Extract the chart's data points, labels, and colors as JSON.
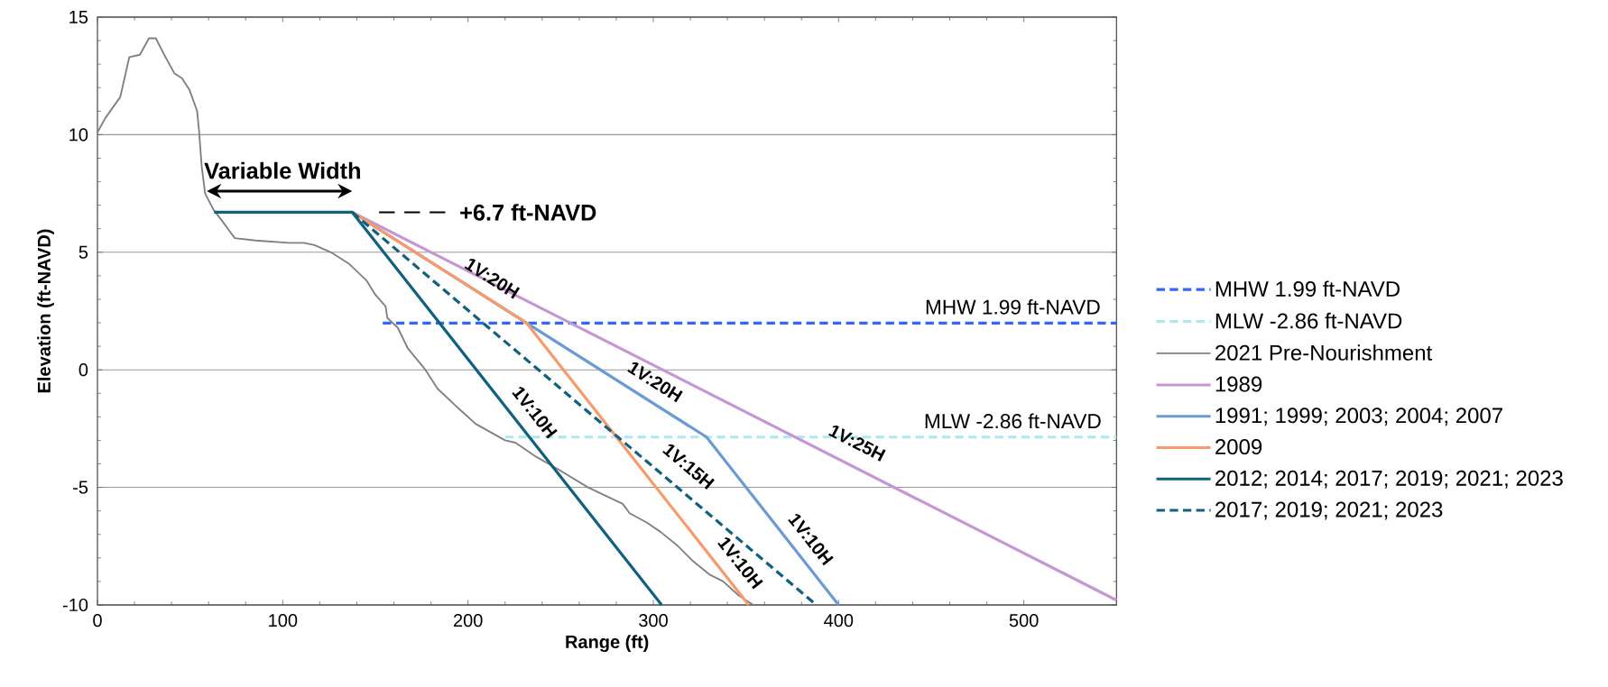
{
  "chart_data": {
    "type": "line",
    "xlabel": "Range (ft)",
    "ylabel": "Elevation (ft-NAVD)",
    "xlim": [
      0,
      550
    ],
    "ylim": [
      -10,
      15
    ],
    "xticks": [
      0,
      100,
      200,
      300,
      400,
      500
    ],
    "yticks": [
      -10,
      -5,
      0,
      5,
      10,
      15
    ],
    "grid": "y",
    "legend": "right",
    "marker": "none",
    "series": [
      {
        "name": "MHW 1.99 ft-NAVD",
        "color": "#3366ff",
        "line_style": "dashed",
        "x": [
          154,
          550
        ],
        "values": [
          1.99,
          1.99
        ]
      },
      {
        "name": "MLW -2.86 ft-NAVD",
        "color": "#aee6f8",
        "line_style": "dashed",
        "x": [
          220,
          550
        ],
        "values": [
          -2.86,
          -2.86
        ]
      },
      {
        "name": "2021 Pre-Nourishment",
        "color": "#808080",
        "line_style": "solid",
        "x": [
          0,
          4.2,
          12.3,
          17.2,
          22.9,
          27.8,
          31.5,
          36.7,
          41.6,
          45.6,
          49.7,
          53.8,
          54.9,
          56.2,
          58.1,
          62.7,
          67.6,
          74.1,
          85.4,
          103.3,
          111.4,
          117.2,
          126,
          135.9,
          145.2,
          149.9,
          155.5,
          156.5,
          162,
          167.6,
          177,
          183.5,
          195.7,
          204.1,
          220,
          225.6,
          236.8,
          248,
          264.8,
          283.5,
          287.2,
          296.6,
          304,
          313.4,
          320.9,
          330.2,
          337.7,
          346.1,
          354
        ],
        "values": [
          10.1,
          10.7,
          11.6,
          13.3,
          13.4,
          14.1,
          14.1,
          13.3,
          12.6,
          12.4,
          11.9,
          11.0,
          10.1,
          8.7,
          7.5,
          6.8,
          6.3,
          5.6,
          5.5,
          5.4,
          5.4,
          5.3,
          5.0,
          4.5,
          3.8,
          3.2,
          2.7,
          2.2,
          1.8,
          0.9,
          0,
          -0.8,
          -1.7,
          -2.3,
          -3.0,
          -3.1,
          -3.7,
          -4.2,
          -5.0,
          -5.7,
          -6.1,
          -6.5,
          -6.9,
          -7.5,
          -8.1,
          -8.7,
          -9.0,
          -9.6,
          -10
        ]
      },
      {
        "name": "1989",
        "color": "#c597d2",
        "line_style": "solid",
        "x": [
          137.5,
          550
        ],
        "values": [
          6.7,
          -9.8
        ]
      },
      {
        "name": "1991; 1999; 2003; 2004; 2007",
        "color": "#6c9bd2",
        "line_style": "solid",
        "x": [
          137.5,
          231.5,
          328.7,
          400
        ],
        "values": [
          6.7,
          2,
          -2.86,
          -10
        ]
      },
      {
        "name": "2009",
        "color": "#f79b6c",
        "line_style": "solid",
        "x": [
          137.5,
          231.5,
          351.5
        ],
        "values": [
          6.7,
          2,
          -10
        ]
      },
      {
        "name": "2012; 2014; 2017; 2019; 2021; 2023",
        "color": "#11607e",
        "line_style": "solid",
        "x": [
          63,
          137.5,
          304.5
        ],
        "values": [
          6.7,
          6.7,
          -10
        ]
      },
      {
        "name": "2017; 2019; 2021; 2023",
        "color": "#11607e",
        "line_style": "dashed",
        "x": [
          137.5,
          388
        ],
        "values": [
          6.7,
          -10
        ]
      }
    ],
    "annotations": [
      "Variable Width",
      "+6.7 ft-NAVD",
      {
        "text": "MHW 1.99 ft-NAVD",
        "x": 494,
        "y": 1.99
      },
      {
        "text": "MLW -2.86 ft-NAVD",
        "x": 494,
        "y": -2.86
      },
      "1V:20H",
      "1V:20H",
      "1V:25H",
      "1V:10H",
      "1V:15H",
      "1V:10H",
      "1V:10H"
    ]
  }
}
